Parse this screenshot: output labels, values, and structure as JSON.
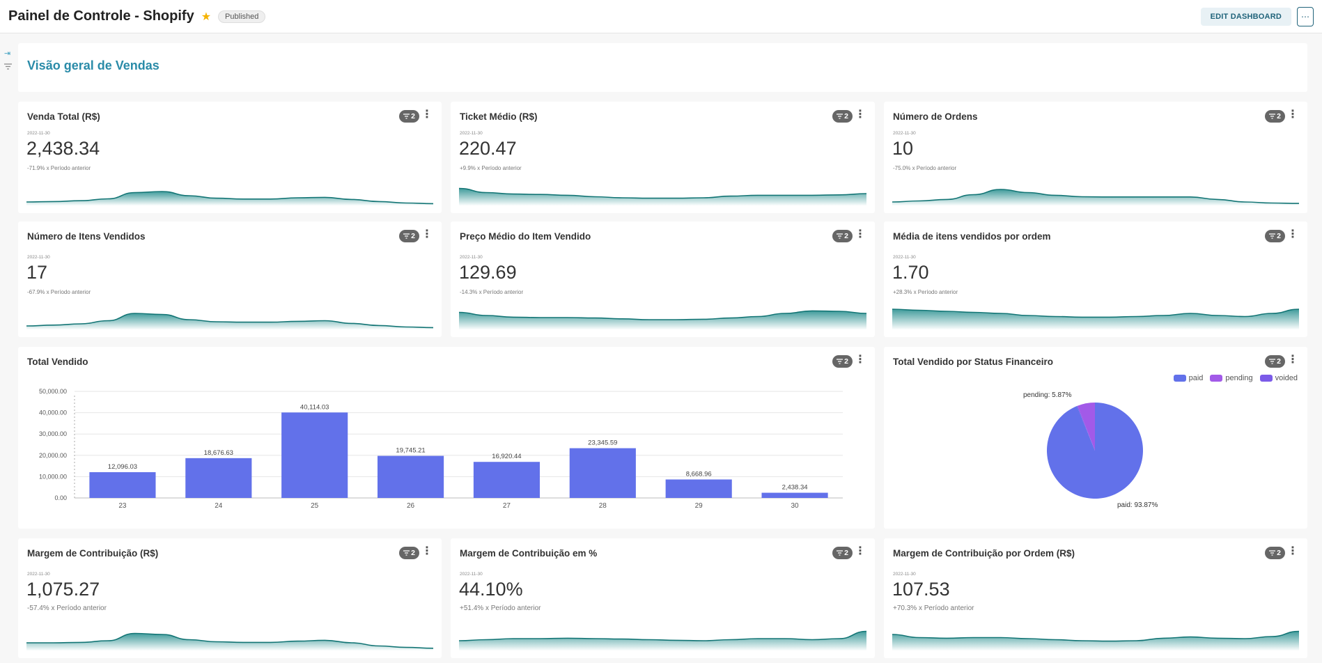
{
  "header": {
    "title": "Painel de Controle - Shopify",
    "status_badge": "Published",
    "edit_label": "EDIT DASHBOARD",
    "more_label": "⋯"
  },
  "section": {
    "title": "Visão geral de Vendas"
  },
  "icons": {
    "expand": "arrow-to-right-icon",
    "filter": "filter-icon",
    "star": "star-icon"
  },
  "filter_count": "2",
  "kpis": [
    {
      "title": "Venda Total (R$)",
      "date": "2022-11-30",
      "value": "2,438.34",
      "delta": "-71.9% x Período anterior",
      "trend": [
        0.1,
        0.12,
        0.16,
        0.25,
        0.55,
        0.6,
        0.4,
        0.28,
        0.24,
        0.24,
        0.3,
        0.32,
        0.22,
        0.12,
        0.05,
        0.02
      ]
    },
    {
      "title": "Ticket Médio (R$)",
      "date": "2022-11-30",
      "value": "220.47",
      "delta": "+9.9% x Período anterior",
      "trend": [
        0.75,
        0.55,
        0.48,
        0.46,
        0.42,
        0.35,
        0.3,
        0.28,
        0.28,
        0.3,
        0.38,
        0.42,
        0.42,
        0.42,
        0.44,
        0.5
      ]
    },
    {
      "title": "Número de Ordens",
      "date": "2022-11-30",
      "value": "10",
      "delta": "-75.0% x Período anterior",
      "trend": [
        0.1,
        0.15,
        0.22,
        0.45,
        0.7,
        0.55,
        0.42,
        0.35,
        0.34,
        0.34,
        0.34,
        0.34,
        0.22,
        0.1,
        0.05,
        0.03
      ]
    },
    {
      "title": "Número de Itens Vendidos",
      "date": "2022-11-30",
      "value": "17",
      "delta": "-67.9% x Período anterior",
      "trend": [
        0.1,
        0.14,
        0.2,
        0.35,
        0.7,
        0.65,
        0.4,
        0.3,
        0.28,
        0.28,
        0.32,
        0.35,
        0.22,
        0.12,
        0.05,
        0.02
      ]
    },
    {
      "title": "Preço Médio do Item Vendido",
      "date": "2022-11-30",
      "value": "129.69",
      "delta": "-14.3% x Período anterior",
      "trend": [
        0.75,
        0.6,
        0.52,
        0.5,
        0.5,
        0.48,
        0.44,
        0.4,
        0.4,
        0.42,
        0.48,
        0.55,
        0.7,
        0.82,
        0.8,
        0.7
      ]
    },
    {
      "title": "Média de itens vendidos por ordem",
      "date": "2022-11-30",
      "value": "1.70",
      "delta": "+28.3% x Período anterior",
      "trend": [
        0.9,
        0.85,
        0.8,
        0.75,
        0.7,
        0.6,
        0.55,
        0.52,
        0.52,
        0.55,
        0.6,
        0.7,
        0.6,
        0.55,
        0.7,
        0.9
      ]
    },
    {
      "title": "Margem de Contribuição (R$)",
      "date": "2022-11-30",
      "value": "1,075.27",
      "delta": "-57.4% x Período anterior",
      "trend": [
        0.3,
        0.3,
        0.32,
        0.4,
        0.75,
        0.7,
        0.45,
        0.35,
        0.32,
        0.32,
        0.38,
        0.42,
        0.3,
        0.15,
        0.08,
        0.04
      ]
    },
    {
      "title": "Margem de Contribuição em %",
      "date": "2022-11-30",
      "value": "44.10%",
      "delta": "+51.4% x Período anterior",
      "trend": [
        0.4,
        0.45,
        0.5,
        0.5,
        0.52,
        0.5,
        0.48,
        0.45,
        0.42,
        0.4,
        0.45,
        0.5,
        0.5,
        0.45,
        0.5,
        0.85
      ]
    },
    {
      "title": "Margem de Contribuição por Ordem (R$)",
      "date": "2022-11-30",
      "value": "107.53",
      "delta": "+70.3% x Período anterior",
      "trend": [
        0.7,
        0.55,
        0.52,
        0.55,
        0.55,
        0.5,
        0.45,
        0.4,
        0.38,
        0.4,
        0.52,
        0.58,
        0.52,
        0.5,
        0.6,
        0.85
      ]
    }
  ],
  "bar_card": {
    "title": "Total Vendido"
  },
  "pie_card": {
    "title": "Total Vendido por Status Financeiro",
    "legend": [
      {
        "name": "paid",
        "color": "#6271ea"
      },
      {
        "name": "pending",
        "color": "#a25ae8"
      },
      {
        "name": "voided",
        "color": "#7b5be8"
      }
    ],
    "labels": {
      "pending": "pending: 5.87%",
      "paid": "paid: 93.87%"
    }
  },
  "chart_data": [
    {
      "type": "bar",
      "title": "Total Vendido",
      "categories": [
        "23",
        "24",
        "25",
        "26",
        "27",
        "28",
        "29",
        "30"
      ],
      "values": [
        12096.03,
        18676.63,
        40114.03,
        19745.21,
        16920.44,
        23345.59,
        8668.96,
        2438.34
      ],
      "value_labels": [
        "12,096.03",
        "18,676.63",
        "40,114.03",
        "19,745.21",
        "16,920.44",
        "23,345.59",
        "8,668.96",
        "2,438.34"
      ],
      "yticks": [
        "0.00",
        "10,000.00",
        "20,000.00",
        "30,000.00",
        "40,000.00",
        "50,000.00"
      ],
      "ylim": [
        0,
        50000
      ],
      "color": "#6271ea",
      "grid": true
    },
    {
      "type": "pie",
      "title": "Total Vendido por Status Financeiro",
      "categories": [
        "paid",
        "pending",
        "voided"
      ],
      "values": [
        93.87,
        5.87,
        0.26
      ],
      "colors": [
        "#6271ea",
        "#a25ae8",
        "#7b5be8"
      ],
      "legend": "top-right"
    }
  ]
}
